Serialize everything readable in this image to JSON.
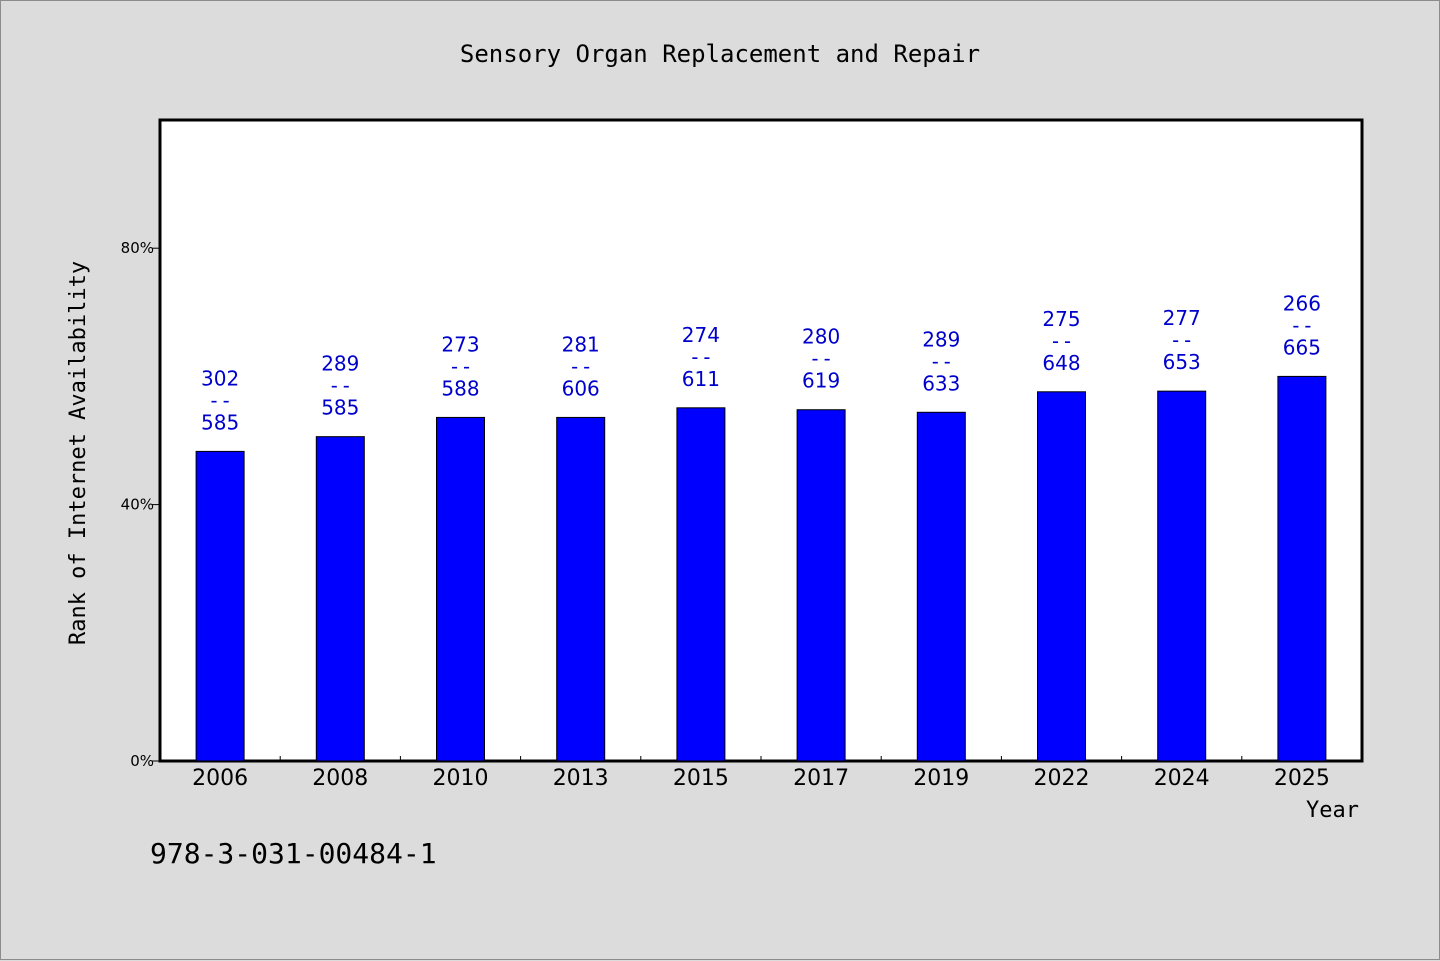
{
  "footer": {
    "isbn": "978-3-031-00484-1"
  },
  "colors": {
    "bar": "#0000ff",
    "label": "#0000cc",
    "background": "#dcdcdc",
    "plot_bg": "#ffffff"
  },
  "chart_data": {
    "type": "bar",
    "title": "Sensory Organ Replacement and Repair",
    "xlabel": "Year",
    "ylabel": "Rank of Internet Availability",
    "ylim": [
      0,
      100
    ],
    "yticks": [
      0,
      40,
      80
    ],
    "ytick_labels": [
      "0%",
      "40%",
      "80%"
    ],
    "grid": false,
    "categories": [
      "2006",
      "2008",
      "2010",
      "2013",
      "2015",
      "2017",
      "2019",
      "2022",
      "2024",
      "2025"
    ],
    "values": [
      48.3,
      50.6,
      53.6,
      53.6,
      55.1,
      54.8,
      54.4,
      57.6,
      57.7,
      60.0
    ],
    "labels_top": [
      "302",
      "289",
      "273",
      "281",
      "274",
      "280",
      "289",
      "275",
      "277",
      "266"
    ],
    "labels_sep": "--",
    "labels_bottom": [
      "585",
      "585",
      "588",
      "606",
      "611",
      "619",
      "633",
      "648",
      "653",
      "665"
    ]
  }
}
